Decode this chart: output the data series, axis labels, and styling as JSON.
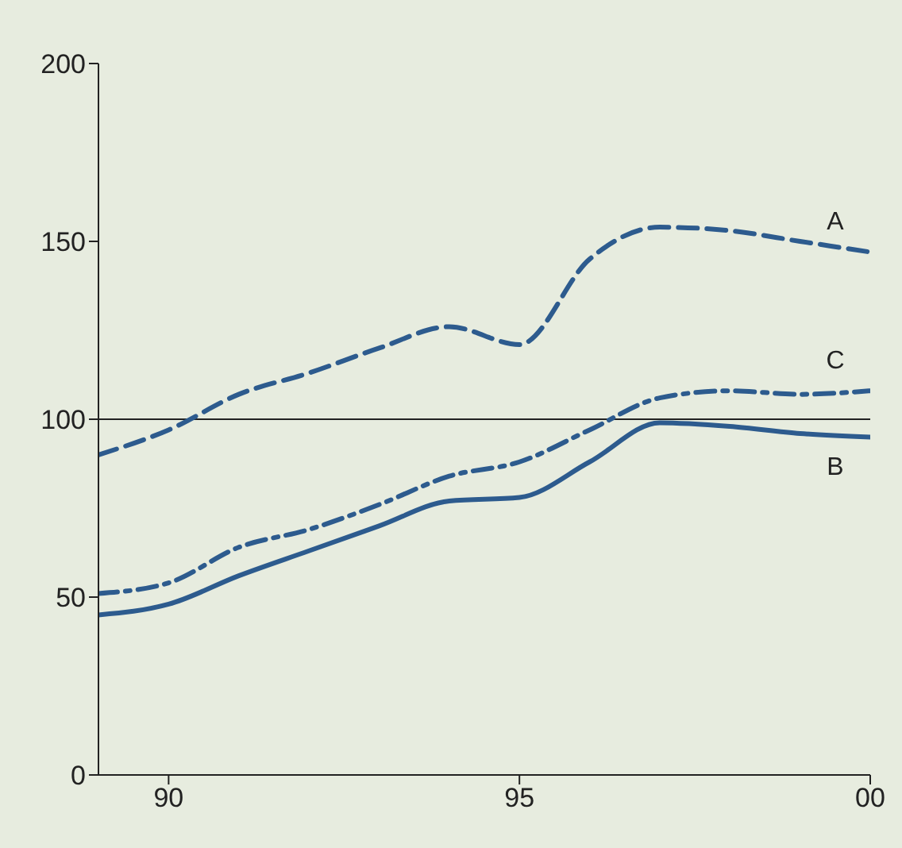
{
  "chart_data": {
    "type": "line",
    "x": [
      "1989",
      "1990",
      "1991",
      "1992",
      "1993",
      "1994",
      "1995",
      "1996",
      "1997",
      "1998",
      "1999",
      "2000"
    ],
    "series": [
      {
        "name": "A",
        "color": "#2d5b8e",
        "line_style": "dashed",
        "values": [
          90,
          97,
          107,
          113,
          120,
          126,
          121,
          145,
          154,
          153,
          150,
          147
        ]
      },
      {
        "name": "C",
        "color": "#2d5b8e",
        "line_style": "dashdot",
        "values": [
          51,
          54,
          64,
          69,
          76,
          84,
          88,
          97,
          106,
          108,
          107,
          108
        ]
      },
      {
        "name": "B",
        "color": "#2d5b8e",
        "line_style": "solid",
        "values": [
          45,
          48,
          56,
          63,
          70,
          77,
          78,
          88,
          99,
          98,
          96,
          95
        ]
      }
    ],
    "xlim": [
      "1989",
      "2000"
    ],
    "xticks": [
      {
        "value": "1990",
        "label": "90"
      },
      {
        "value": "1995",
        "label": "95"
      },
      {
        "value": "2000",
        "label": "00"
      }
    ],
    "ylim": [
      0,
      200
    ],
    "yticks": [
      0,
      50,
      100,
      150,
      200
    ],
    "ref_lines": [
      {
        "axis": "y",
        "value": 100,
        "color": "#222222"
      }
    ],
    "grid": false,
    "legend": false,
    "marker": "none"
  }
}
